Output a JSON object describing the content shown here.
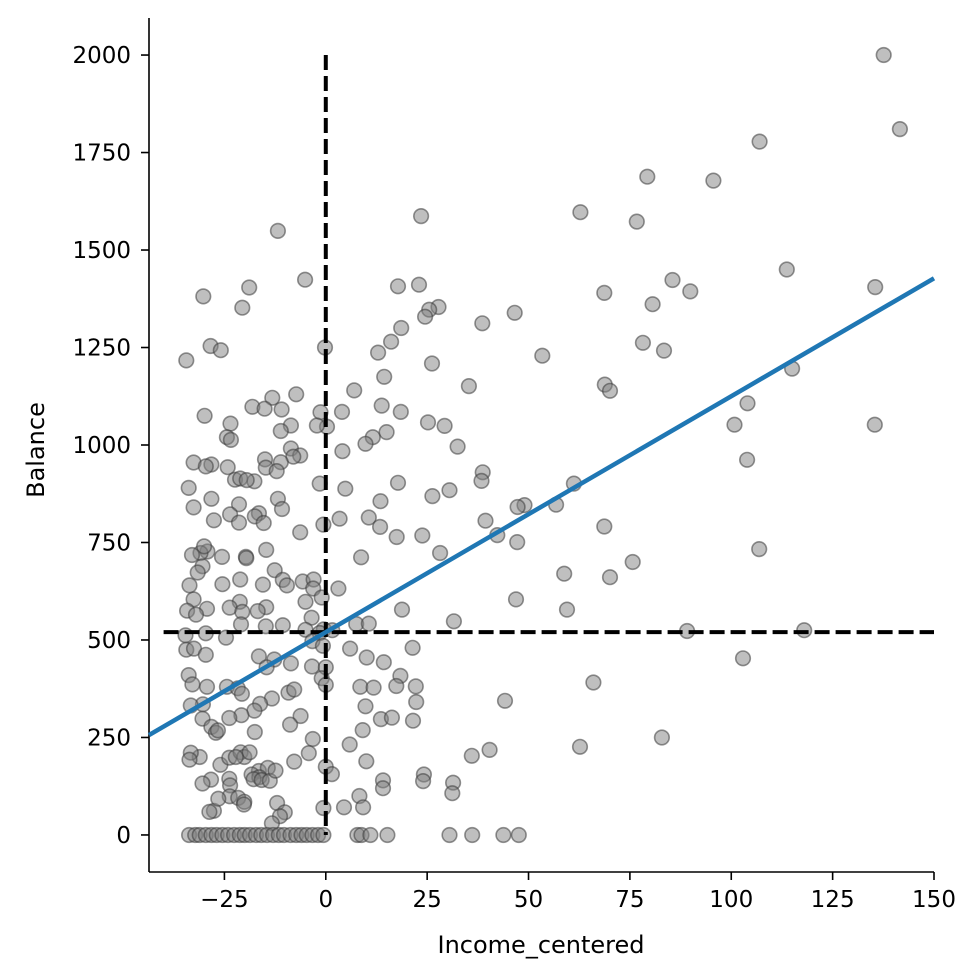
{
  "chart_data": {
    "type": "scatter",
    "title": "",
    "xlabel": "Income_centered",
    "ylabel": "Balance",
    "xlim": [
      -43.6,
      150
    ],
    "ylim": [
      -95,
      2095
    ],
    "x_ticks": [
      -25,
      0,
      25,
      50,
      75,
      100,
      125,
      150
    ],
    "y_ticks": [
      0,
      250,
      500,
      750,
      1000,
      1250,
      1500,
      1750,
      2000
    ],
    "grid": false,
    "legend": "none",
    "colors": {
      "points": "#808080",
      "fit_line": "#1f77b4",
      "reference_lines": "#000000"
    },
    "fit_line": {
      "slope": 6.05,
      "intercept": 520
    },
    "reference_lines": {
      "vertical_x": 0,
      "horizontal_y": 520
    },
    "points": [
      [
        137.6,
        2000
      ],
      [
        141.6,
        1810
      ],
      [
        107.0,
        1778
      ],
      [
        79.3,
        1688
      ],
      [
        95.6,
        1678
      ],
      [
        62.8,
        1597
      ],
      [
        76.7,
        1573
      ],
      [
        23.5,
        1587
      ],
      [
        -11.8,
        1549
      ],
      [
        113.7,
        1450
      ],
      [
        135.5,
        1405
      ],
      [
        -5.1,
        1424
      ],
      [
        85.5,
        1423
      ],
      [
        23.0,
        1411
      ],
      [
        17.8,
        1407
      ],
      [
        -18.9,
        1404
      ],
      [
        68.7,
        1390
      ],
      [
        89.9,
        1394
      ],
      [
        -30.2,
        1381
      ],
      [
        80.6,
        1361
      ],
      [
        27.8,
        1354
      ],
      [
        25.5,
        1347
      ],
      [
        -20.6,
        1352
      ],
      [
        24.5,
        1329
      ],
      [
        46.6,
        1339
      ],
      [
        38.6,
        1312
      ],
      [
        18.6,
        1300
      ],
      [
        16.1,
        1265
      ],
      [
        78.2,
        1262
      ],
      [
        -28.4,
        1254
      ],
      [
        -25.9,
        1243
      ],
      [
        -0.2,
        1250
      ],
      [
        83.4,
        1242
      ],
      [
        53.4,
        1229
      ],
      [
        12.9,
        1237
      ],
      [
        -34.4,
        1217
      ],
      [
        26.2,
        1209
      ],
      [
        115.0,
        1196
      ],
      [
        14.4,
        1175
      ],
      [
        68.8,
        1155
      ],
      [
        35.3,
        1151
      ],
      [
        7.0,
        1140
      ],
      [
        70.1,
        1139
      ],
      [
        -7.3,
        1130
      ],
      [
        -13.2,
        1121
      ],
      [
        104.0,
        1107
      ],
      [
        13.8,
        1101
      ],
      [
        -18.1,
        1098
      ],
      [
        -10.9,
        1091
      ],
      [
        -15.1,
        1093
      ],
      [
        4.0,
        1085
      ],
      [
        -1.3,
        1084
      ],
      [
        18.5,
        1085
      ],
      [
        -29.9,
        1075
      ],
      [
        -23.5,
        1055
      ],
      [
        25.2,
        1058
      ],
      [
        29.3,
        1049
      ],
      [
        0.3,
        1047
      ],
      [
        -2.2,
        1050
      ],
      [
        -8.6,
        1050
      ],
      [
        100.8,
        1052
      ],
      [
        135.4,
        1052
      ],
      [
        -11.1,
        1036
      ],
      [
        15.0,
        1033
      ],
      [
        11.6,
        1020
      ],
      [
        -24.4,
        1020
      ],
      [
        -23.4,
        1013
      ],
      [
        9.8,
        1003
      ],
      [
        32.5,
        996
      ],
      [
        -8.6,
        991
      ],
      [
        -6.3,
        973
      ],
      [
        -8.0,
        970
      ],
      [
        103.9,
        962
      ],
      [
        4.1,
        984
      ],
      [
        -15.0,
        963
      ],
      [
        -32.6,
        955
      ],
      [
        -28.2,
        950
      ],
      [
        -11.1,
        956
      ],
      [
        -29.6,
        945
      ],
      [
        -14.8,
        942
      ],
      [
        -24.2,
        943
      ],
      [
        -12.1,
        933
      ],
      [
        -22.4,
        911
      ],
      [
        -17.6,
        907
      ],
      [
        38.7,
        930
      ],
      [
        -21.1,
        914
      ],
      [
        -19.5,
        910
      ],
      [
        61.2,
        901
      ],
      [
        17.8,
        903
      ],
      [
        -1.5,
        901
      ],
      [
        4.8,
        888
      ],
      [
        -28.2,
        862
      ],
      [
        -33.8,
        890
      ],
      [
        30.5,
        884
      ],
      [
        26.3,
        869
      ],
      [
        13.5,
        856
      ],
      [
        -11.8,
        862
      ],
      [
        -21.4,
        848
      ],
      [
        -32.6,
        840
      ],
      [
        -10.8,
        836
      ],
      [
        56.8,
        847
      ],
      [
        49.0,
        846
      ],
      [
        38.4,
        908
      ],
      [
        47.3,
        841
      ],
      [
        -16.5,
        825
      ],
      [
        -17.5,
        817
      ],
      [
        -23.6,
        822
      ],
      [
        -15.3,
        800
      ],
      [
        -27.6,
        807
      ],
      [
        -21.4,
        801
      ],
      [
        3.4,
        811
      ],
      [
        10.6,
        814
      ],
      [
        39.4,
        806
      ],
      [
        -0.6,
        796
      ],
      [
        13.4,
        790
      ],
      [
        68.7,
        791
      ],
      [
        -6.3,
        776
      ],
      [
        17.5,
        764
      ],
      [
        23.8,
        768
      ],
      [
        42.3,
        769
      ],
      [
        47.2,
        751
      ],
      [
        -14.7,
        731
      ],
      [
        8.7,
        712
      ],
      [
        -29.2,
        727
      ],
      [
        -25.6,
        713
      ],
      [
        -19.7,
        713
      ],
      [
        -19.6,
        710
      ],
      [
        28.2,
        723
      ],
      [
        -30.9,
        723
      ],
      [
        75.7,
        700
      ],
      [
        106.9,
        733
      ],
      [
        -30.0,
        740
      ],
      [
        -33.0,
        718
      ],
      [
        -30.4,
        689
      ],
      [
        -31.6,
        673
      ],
      [
        -12.6,
        679
      ],
      [
        -10.6,
        654
      ],
      [
        58.8,
        670
      ],
      [
        70.1,
        661
      ],
      [
        -25.5,
        643
      ],
      [
        -15.5,
        642
      ],
      [
        -21.1,
        655
      ],
      [
        -5.7,
        650
      ],
      [
        -3.0,
        655
      ],
      [
        -9.6,
        640
      ],
      [
        -3.1,
        632
      ],
      [
        -21.2,
        598
      ],
      [
        -14.7,
        584
      ],
      [
        -23.7,
        583
      ],
      [
        -20.6,
        572
      ],
      [
        3.1,
        632
      ],
      [
        -1.0,
        609
      ],
      [
        -5.0,
        598
      ],
      [
        -32.6,
        604
      ],
      [
        -29.3,
        580
      ],
      [
        -16.8,
        574
      ],
      [
        -34.2,
        575
      ],
      [
        -33.6,
        640
      ],
      [
        -32.0,
        565
      ],
      [
        59.5,
        578
      ],
      [
        18.8,
        578
      ],
      [
        46.9,
        604
      ],
      [
        31.6,
        548
      ],
      [
        -3.5,
        557
      ],
      [
        -20.9,
        540
      ],
      [
        -14.8,
        535
      ],
      [
        -10.6,
        538
      ],
      [
        -5.0,
        526
      ],
      [
        -0.5,
        527
      ],
      [
        1.6,
        525
      ],
      [
        7.5,
        541
      ],
      [
        10.6,
        542
      ],
      [
        89.1,
        523
      ],
      [
        118.0,
        525
      ],
      [
        -34.6,
        512
      ],
      [
        -29.6,
        517
      ],
      [
        -24.6,
        506
      ],
      [
        -1.5,
        518
      ],
      [
        6.0,
        478
      ],
      [
        -3.3,
        497
      ],
      [
        -0.7,
        485
      ],
      [
        21.4,
        480
      ],
      [
        -34.4,
        475
      ],
      [
        -32.5,
        478
      ],
      [
        -29.6,
        462
      ],
      [
        -16.5,
        458
      ],
      [
        -12.7,
        450
      ],
      [
        -14.6,
        430
      ],
      [
        -8.6,
        440
      ],
      [
        -3.4,
        432
      ],
      [
        0.0,
        430
      ],
      [
        -1.0,
        402
      ],
      [
        0.0,
        385
      ],
      [
        -9.2,
        365
      ],
      [
        -24.4,
        380
      ],
      [
        -29.3,
        380
      ],
      [
        -33.8,
        410
      ],
      [
        -32.9,
        386
      ],
      [
        -30.3,
        335
      ],
      [
        -33.3,
        332
      ],
      [
        -21.7,
        376
      ],
      [
        -20.7,
        362
      ],
      [
        -13.3,
        350
      ],
      [
        -16.2,
        336
      ],
      [
        -17.6,
        319
      ],
      [
        -7.8,
        373
      ],
      [
        10.1,
        455
      ],
      [
        14.3,
        443
      ],
      [
        18.4,
        408
      ],
      [
        8.5,
        380
      ],
      [
        11.8,
        378
      ],
      [
        17.4,
        382
      ],
      [
        22.2,
        381
      ],
      [
        9.8,
        330
      ],
      [
        13.6,
        297
      ],
      [
        16.3,
        301
      ],
      [
        21.5,
        293
      ],
      [
        22.3,
        341
      ],
      [
        -6.2,
        305
      ],
      [
        -20.8,
        307
      ],
      [
        -23.8,
        300
      ],
      [
        -30.4,
        298
      ],
      [
        -28.2,
        277
      ],
      [
        -27.1,
        262
      ],
      [
        -26.6,
        268
      ],
      [
        -17.5,
        264
      ],
      [
        -8.8,
        283
      ],
      [
        -3.2,
        246
      ],
      [
        5.9,
        232
      ],
      [
        -26.0,
        180
      ],
      [
        -31.1,
        200
      ],
      [
        -33.3,
        211
      ],
      [
        -33.6,
        193
      ],
      [
        -23.8,
        198
      ],
      [
        -21.0,
        212
      ],
      [
        -20.1,
        200
      ],
      [
        -18.8,
        212
      ],
      [
        -22.2,
        200
      ],
      [
        -16.5,
        164
      ],
      [
        -14.3,
        172
      ],
      [
        -18.3,
        155
      ],
      [
        -16.4,
        148
      ],
      [
        -17.8,
        143
      ],
      [
        -15.8,
        141
      ],
      [
        -13.8,
        139
      ],
      [
        -12.4,
        165
      ],
      [
        -7.8,
        188
      ],
      [
        -4.2,
        210
      ],
      [
        0.0,
        175
      ],
      [
        1.5,
        156
      ],
      [
        9.1,
        269
      ],
      [
        10.0,
        189
      ],
      [
        14.1,
        140
      ],
      [
        14.1,
        120
      ],
      [
        24.2,
        155
      ],
      [
        24.0,
        138
      ],
      [
        31.4,
        134
      ],
      [
        31.2,
        107
      ],
      [
        36.0,
        203
      ],
      [
        40.4,
        218
      ],
      [
        44.2,
        344
      ],
      [
        62.7,
        226
      ],
      [
        66.0,
        391
      ],
      [
        82.9,
        250
      ],
      [
        -28.3,
        142
      ],
      [
        -30.4,
        132
      ],
      [
        -23.8,
        144
      ],
      [
        -23.6,
        127
      ],
      [
        -23.7,
        99
      ],
      [
        -21.6,
        95
      ],
      [
        -20.1,
        85
      ],
      [
        -20.2,
        78
      ],
      [
        -12.0,
        82
      ],
      [
        -10.1,
        58
      ],
      [
        -11.3,
        48
      ],
      [
        -13.3,
        30
      ],
      [
        -27.6,
        62
      ],
      [
        -26.5,
        93
      ],
      [
        -28.7,
        59
      ],
      [
        -0.6,
        69
      ],
      [
        4.5,
        71
      ],
      [
        8.3,
        100
      ],
      [
        9.2,
        71
      ],
      [
        102.9,
        453
      ],
      [
        -33.7,
        0
      ],
      [
        -32.2,
        0
      ],
      [
        -31.1,
        0
      ],
      [
        -29.6,
        0
      ],
      [
        -28.2,
        0
      ],
      [
        -26.9,
        0
      ],
      [
        -25.5,
        0
      ],
      [
        -24.1,
        0
      ],
      [
        -22.6,
        0
      ],
      [
        -21.2,
        0
      ],
      [
        -20.0,
        0
      ],
      [
        -18.7,
        0
      ],
      [
        -17.2,
        0
      ],
      [
        -15.9,
        0
      ],
      [
        -14.5,
        0
      ],
      [
        -13.0,
        0
      ],
      [
        -11.6,
        0
      ],
      [
        -10.3,
        0
      ],
      [
        -8.7,
        0
      ],
      [
        -7.3,
        0
      ],
      [
        -6.0,
        0
      ],
      [
        -4.7,
        0
      ],
      [
        -3.3,
        0
      ],
      [
        -1.9,
        0
      ],
      [
        -0.6,
        0
      ],
      [
        7.8,
        0
      ],
      [
        8.8,
        0
      ],
      [
        11.0,
        0
      ],
      [
        15.2,
        0
      ],
      [
        30.5,
        0
      ],
      [
        36.1,
        0
      ],
      [
        43.8,
        0
      ],
      [
        47.6,
        0
      ]
    ]
  }
}
